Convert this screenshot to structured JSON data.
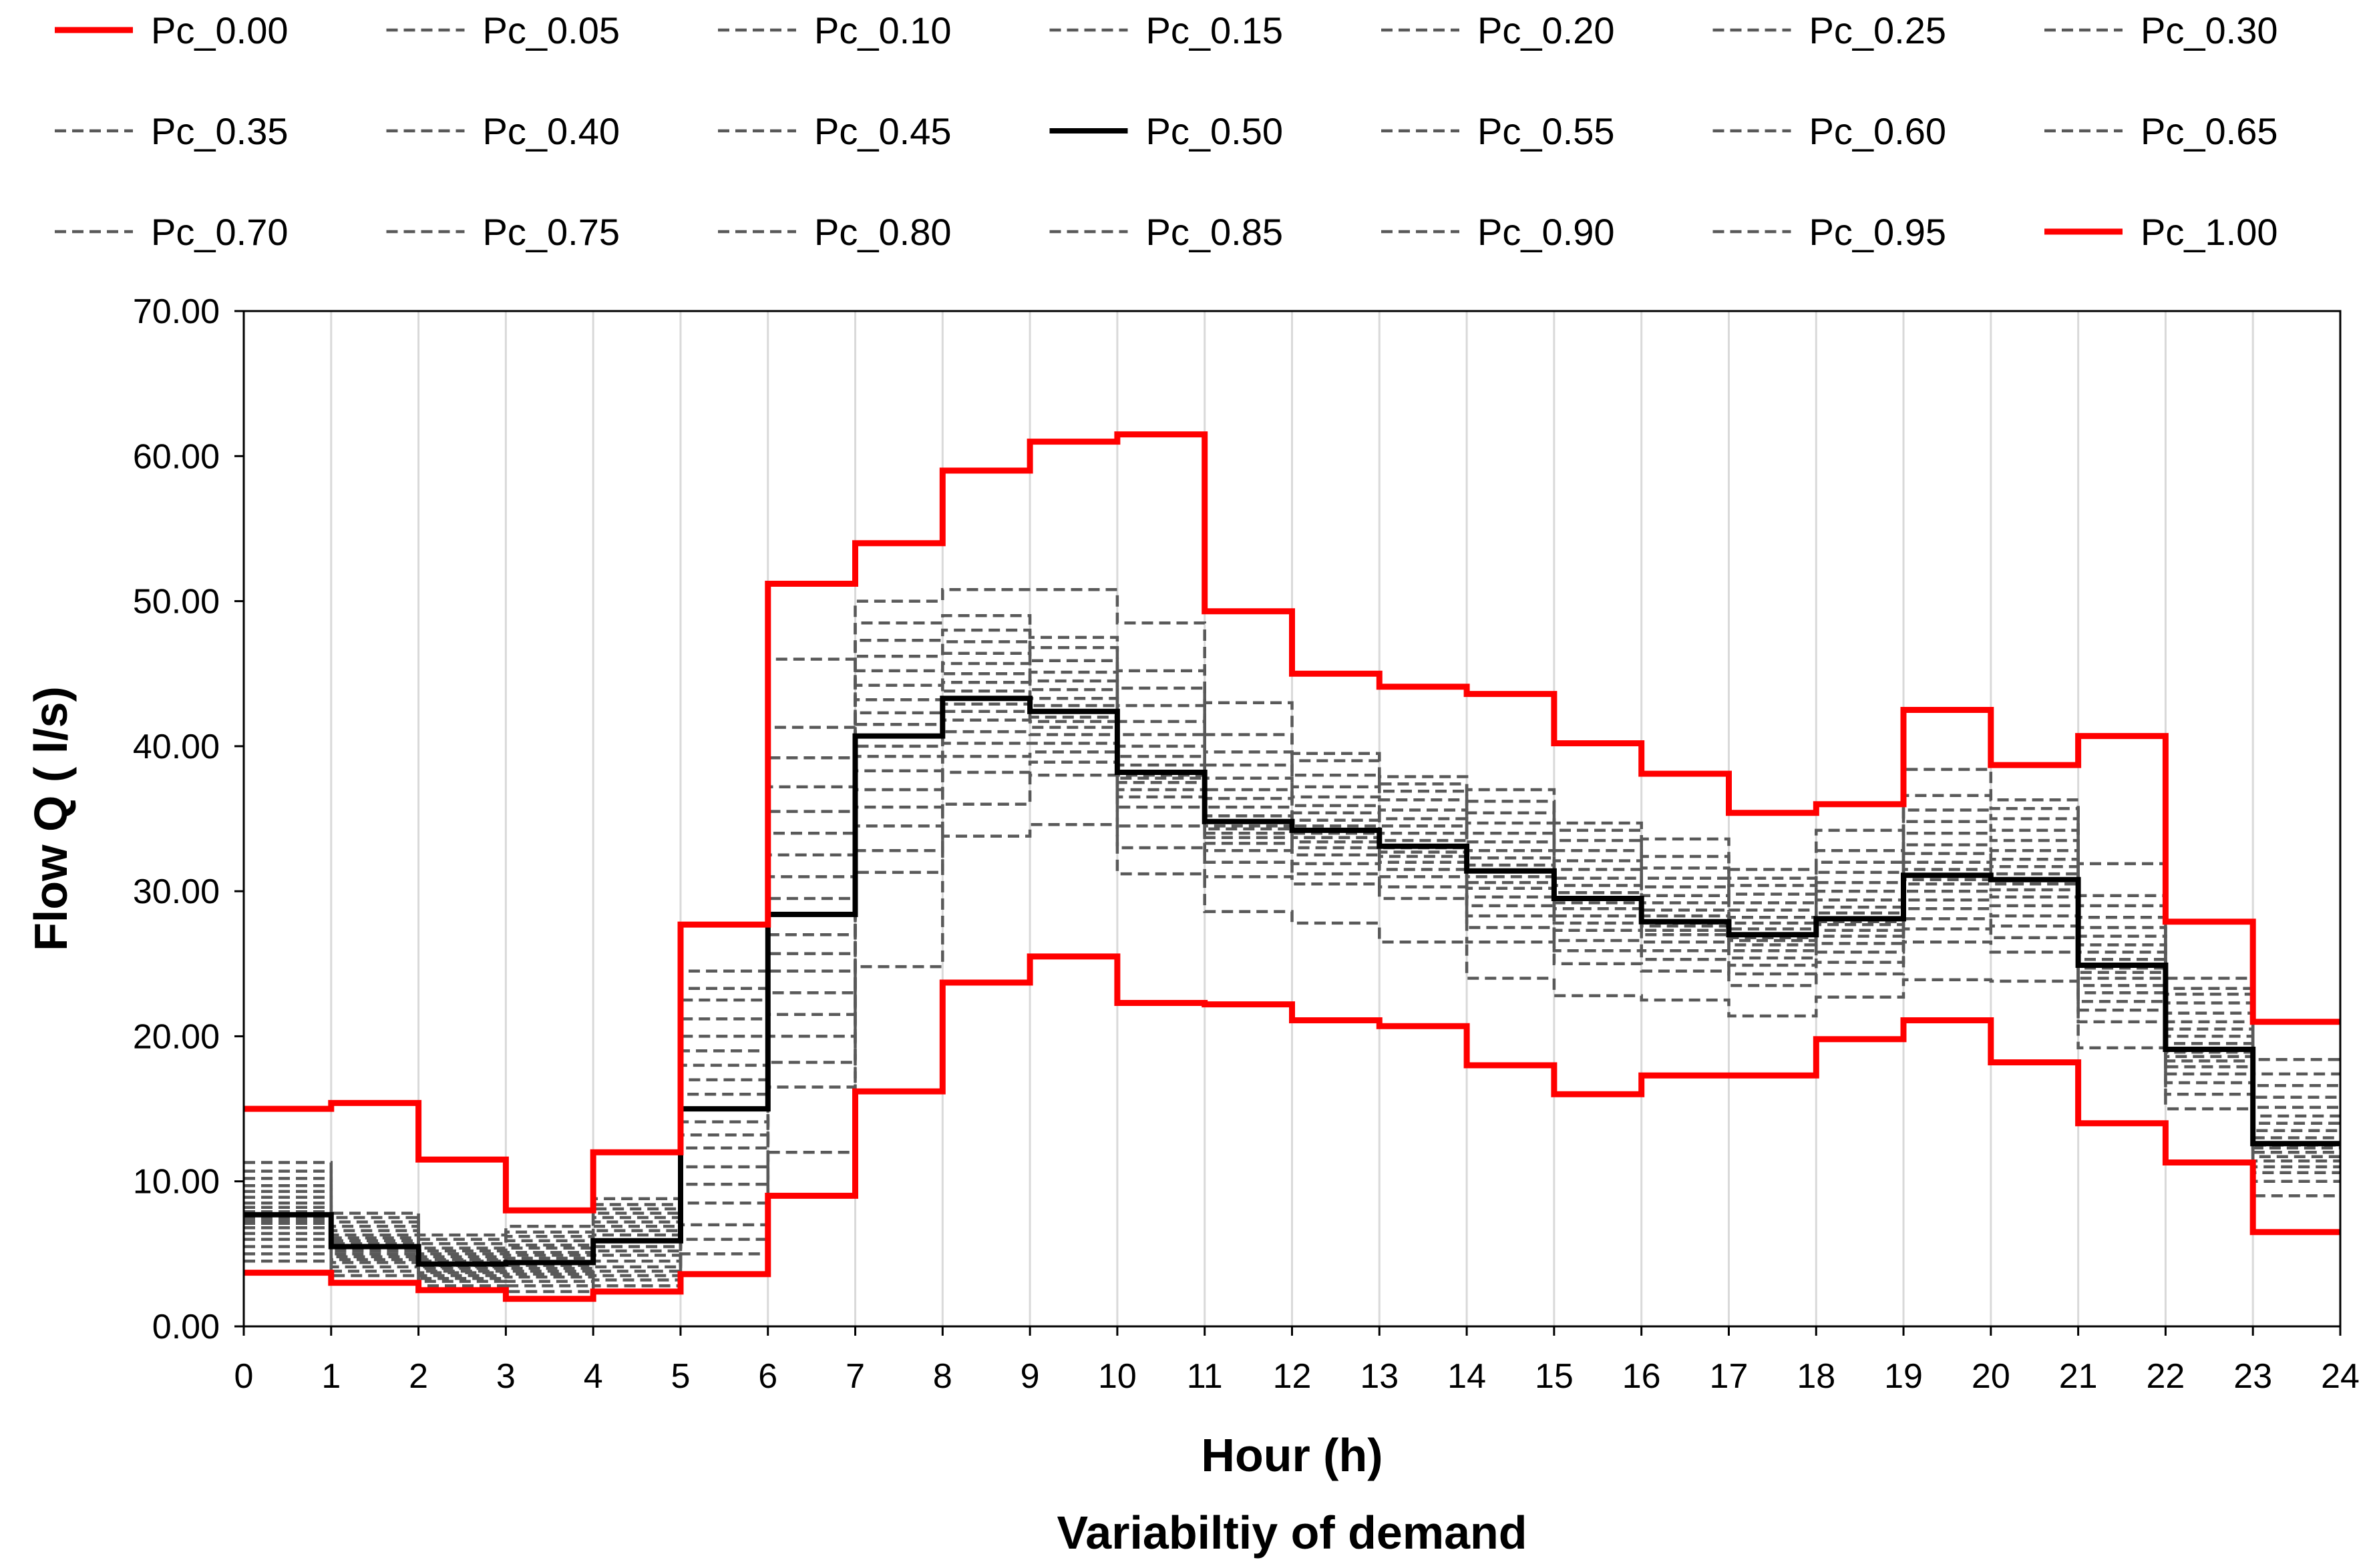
{
  "chart_data": {
    "type": "line",
    "step": true,
    "title": "Variabiltiy of demand",
    "xlabel": "Hour (h)",
    "ylabel": "Flow Q ( l/s)",
    "xlim": [
      0,
      24
    ],
    "ylim": [
      0,
      70
    ],
    "x_ticks": [
      "0",
      "1",
      "2",
      "3",
      "4",
      "5",
      "6",
      "7",
      "8",
      "9",
      "10",
      "11",
      "12",
      "13",
      "14",
      "15",
      "16",
      "17",
      "18",
      "19",
      "20",
      "21",
      "22",
      "23",
      "24"
    ],
    "y_ticks": [
      "0.00",
      "10.00",
      "20.00",
      "30.00",
      "40.00",
      "50.00",
      "60.00",
      "70.00"
    ],
    "grid": "vertical",
    "legend_position": "top",
    "colors": {
      "extreme": "#ff0000",
      "median": "#000000",
      "percentile": "#595959",
      "grid": "#d9d9d9",
      "axis": "#000000"
    },
    "x": [
      0,
      1,
      2,
      3,
      4,
      5,
      6,
      7,
      8,
      9,
      10,
      11,
      12,
      13,
      14,
      15,
      16,
      17,
      18,
      19,
      20,
      21,
      22,
      23
    ],
    "series": [
      {
        "name": "Pc_0.00",
        "style": "red",
        "values": [
          3.7,
          3.0,
          2.5,
          1.9,
          2.4,
          3.6,
          9.0,
          16.2,
          23.7,
          25.5,
          22.3,
          22.2,
          21.1,
          20.7,
          18.0,
          16.0,
          17.3,
          17.3,
          19.8,
          21.1,
          18.2,
          14.0,
          11.3,
          6.5
        ]
      },
      {
        "name": "Pc_0.05",
        "style": "dashed",
        "values": [
          4.5,
          3.5,
          2.8,
          2.4,
          2.8,
          5.0,
          12.0,
          24.8,
          33.8,
          34.6,
          31.2,
          28.6,
          27.8,
          26.5,
          24.0,
          22.8,
          22.5,
          21.4,
          22.7,
          23.9,
          23.8,
          19.2,
          15.0,
          9.0
        ]
      },
      {
        "name": "Pc_0.10",
        "style": "dashed",
        "values": [
          5.0,
          3.8,
          3.1,
          2.8,
          3.2,
          6.0,
          16.5,
          31.3,
          36.0,
          38.0,
          33.0,
          31.0,
          30.5,
          29.5,
          26.5,
          25.0,
          24.5,
          23.5,
          24.3,
          26.5,
          25.8,
          21.0,
          16.0,
          10.0
        ]
      },
      {
        "name": "Pc_0.15",
        "style": "dashed",
        "values": [
          5.5,
          4.1,
          3.3,
          3.1,
          3.5,
          7.0,
          18.2,
          32.8,
          38.2,
          38.9,
          34.5,
          32.0,
          31.2,
          30.3,
          27.5,
          25.9,
          25.3,
          24.3,
          25.1,
          27.4,
          26.8,
          21.8,
          16.8,
          10.6
        ]
      },
      {
        "name": "Pc_0.20",
        "style": "dashed",
        "values": [
          6.0,
          4.4,
          3.5,
          3.4,
          3.8,
          8.5,
          20.0,
          34.5,
          39.3,
          39.6,
          35.8,
          32.8,
          31.9,
          31.0,
          28.3,
          26.6,
          25.9,
          24.9,
          25.8,
          28.1,
          27.6,
          22.4,
          17.4,
          11.0
        ]
      },
      {
        "name": "Pc_0.25",
        "style": "dashed",
        "values": [
          6.4,
          4.6,
          3.7,
          3.6,
          4.1,
          9.8,
          21.5,
          35.8,
          40.2,
          40.2,
          36.5,
          33.3,
          32.5,
          31.5,
          29.0,
          27.3,
          26.5,
          25.4,
          26.4,
          28.8,
          28.3,
          23.0,
          17.9,
          11.4
        ]
      },
      {
        "name": "Pc_0.30",
        "style": "dashed",
        "values": [
          6.8,
          4.8,
          3.8,
          3.8,
          4.5,
          11.0,
          23.0,
          37.0,
          41.0,
          40.8,
          37.0,
          33.7,
          33.0,
          32.0,
          29.6,
          27.8,
          27.0,
          25.9,
          26.9,
          29.4,
          29.0,
          23.5,
          18.3,
          11.7
        ]
      },
      {
        "name": "Pc_0.35",
        "style": "dashed",
        "values": [
          7.1,
          5.0,
          4.0,
          4.0,
          4.9,
          12.3,
          24.5,
          38.3,
          41.8,
          41.3,
          37.5,
          34.0,
          33.4,
          32.4,
          30.2,
          28.3,
          27.3,
          26.3,
          27.3,
          30.0,
          29.6,
          24.0,
          18.6,
          12.0
        ]
      },
      {
        "name": "Pc_0.40",
        "style": "dashed",
        "values": [
          7.3,
          5.2,
          4.1,
          4.2,
          5.2,
          13.2,
          25.7,
          39.3,
          42.4,
          41.7,
          37.8,
          34.3,
          33.7,
          32.7,
          30.6,
          28.8,
          27.6,
          26.6,
          27.7,
          30.5,
          30.1,
          24.4,
          18.9,
          12.3
        ]
      },
      {
        "name": "Pc_0.45",
        "style": "dashed",
        "values": [
          7.5,
          5.4,
          4.2,
          4.4,
          5.5,
          14.1,
          27.0,
          40.0,
          42.9,
          42.0,
          38.0,
          34.5,
          34.0,
          33.0,
          31.0,
          29.2,
          27.8,
          26.8,
          27.9,
          30.8,
          30.5,
          24.7,
          19.0,
          12.5
        ]
      },
      {
        "name": "Pc_0.50",
        "style": "black",
        "values": [
          7.7,
          5.5,
          4.3,
          4.4,
          5.9,
          15.0,
          28.4,
          40.7,
          43.3,
          42.4,
          38.2,
          34.8,
          34.2,
          33.1,
          31.4,
          29.5,
          27.9,
          27.0,
          28.1,
          31.1,
          30.8,
          24.9,
          19.1,
          12.6
        ]
      },
      {
        "name": "Pc_0.55",
        "style": "dashed",
        "values": [
          7.9,
          5.7,
          4.5,
          4.7,
          6.3,
          16.0,
          29.5,
          41.5,
          43.8,
          42.8,
          38.7,
          35.2,
          34.5,
          33.5,
          31.8,
          29.9,
          28.3,
          27.4,
          28.5,
          31.5,
          31.2,
          25.3,
          19.5,
          13.0
        ]
      },
      {
        "name": "Pc_0.60",
        "style": "dashed",
        "values": [
          8.2,
          5.9,
          4.6,
          4.9,
          6.6,
          17.0,
          31.0,
          42.3,
          44.4,
          43.3,
          39.3,
          35.8,
          34.9,
          34.0,
          32.3,
          30.4,
          28.7,
          27.8,
          28.9,
          32.0,
          31.7,
          25.8,
          20.0,
          13.5
        ]
      },
      {
        "name": "Pc_0.65",
        "style": "dashed",
        "values": [
          8.5,
          6.1,
          4.8,
          5.1,
          6.9,
          18.0,
          32.5,
          43.2,
          45.0,
          43.9,
          40.0,
          36.4,
          35.4,
          34.5,
          32.8,
          30.9,
          29.2,
          28.2,
          29.4,
          32.6,
          32.2,
          26.3,
          20.5,
          14.0
        ]
      },
      {
        "name": "Pc_0.70",
        "style": "dashed",
        "values": [
          8.9,
          6.3,
          5.0,
          5.4,
          7.2,
          19.0,
          34.0,
          44.2,
          45.7,
          44.5,
          40.8,
          37.0,
          35.9,
          35.0,
          33.4,
          31.5,
          29.7,
          28.7,
          30.0,
          33.2,
          32.8,
          26.9,
          21.0,
          14.5
        ]
      },
      {
        "name": "Pc_0.75",
        "style": "dashed",
        "values": [
          9.3,
          6.6,
          5.2,
          5.6,
          7.5,
          20.0,
          35.5,
          45.2,
          46.4,
          45.1,
          41.7,
          37.8,
          36.5,
          35.6,
          34.0,
          32.1,
          30.3,
          29.2,
          30.6,
          34.0,
          33.5,
          27.5,
          21.6,
          15.1
        ]
      },
      {
        "name": "Pc_0.80",
        "style": "dashed",
        "values": [
          9.7,
          6.9,
          5.4,
          5.9,
          7.8,
          21.2,
          37.2,
          46.2,
          47.2,
          45.9,
          42.8,
          38.7,
          37.2,
          36.3,
          34.7,
          32.8,
          30.9,
          29.8,
          31.3,
          34.8,
          34.2,
          28.2,
          22.3,
          15.8
        ]
      },
      {
        "name": "Pc_0.85",
        "style": "dashed",
        "values": [
          10.2,
          7.2,
          5.7,
          6.2,
          8.1,
          22.5,
          39.2,
          47.3,
          48.0,
          46.8,
          44.0,
          39.6,
          38.0,
          36.9,
          35.4,
          33.5,
          31.6,
          30.4,
          32.0,
          35.6,
          35.0,
          29.0,
          22.9,
          16.6
        ]
      },
      {
        "name": "Pc_0.90",
        "style": "dashed",
        "values": [
          10.7,
          7.5,
          6.0,
          6.5,
          8.4,
          23.3,
          41.3,
          48.5,
          49.0,
          47.5,
          45.2,
          40.8,
          39.0,
          37.4,
          36.2,
          34.2,
          32.4,
          30.9,
          32.8,
          36.6,
          35.7,
          29.7,
          23.3,
          17.4
        ]
      },
      {
        "name": "Pc_0.95",
        "style": "dashed",
        "values": [
          11.3,
          7.8,
          6.3,
          6.9,
          8.8,
          24.5,
          46.0,
          50.0,
          50.8,
          50.8,
          48.5,
          43.0,
          39.5,
          37.9,
          37.0,
          34.7,
          33.6,
          31.5,
          34.2,
          38.4,
          36.3,
          31.9,
          24.0,
          18.4
        ]
      },
      {
        "name": "Pc_1.00",
        "style": "red",
        "values": [
          15.0,
          15.4,
          11.5,
          8.0,
          12.0,
          27.7,
          51.2,
          54.0,
          59.0,
          61.0,
          61.5,
          49.3,
          45.0,
          44.1,
          43.6,
          40.2,
          38.1,
          35.4,
          36.0,
          42.5,
          38.7,
          40.7,
          27.9,
          21.0
        ]
      }
    ],
    "legend": [
      "Pc_0.00",
      "Pc_0.05",
      "Pc_0.10",
      "Pc_0.15",
      "Pc_0.20",
      "Pc_0.25",
      "Pc_0.30",
      "Pc_0.35",
      "Pc_0.40",
      "Pc_0.45",
      "Pc_0.50",
      "Pc_0.55",
      "Pc_0.60",
      "Pc_0.65",
      "Pc_0.70",
      "Pc_0.75",
      "Pc_0.80",
      "Pc_0.85",
      "Pc_0.90",
      "Pc_0.95",
      "Pc_1.00"
    ]
  }
}
